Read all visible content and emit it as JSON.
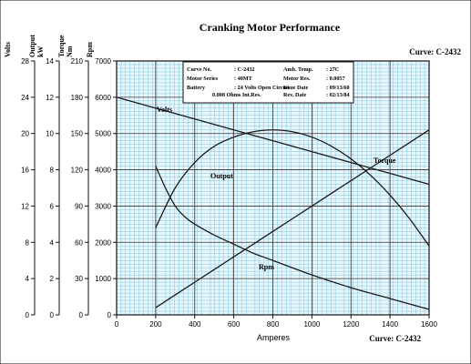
{
  "chart_data": {
    "type": "line",
    "title": "Cranking Motor Performance",
    "curve_label": "Curve: C-2432",
    "xlabel": "Amperes",
    "x_ticks": [
      0,
      200,
      400,
      600,
      800,
      1000,
      1200,
      1400,
      1600
    ],
    "xlim": [
      0,
      1600
    ],
    "grid": true,
    "axes": [
      {
        "key": "volts",
        "label": "Volts",
        "unit": "",
        "ticks": [
          0,
          4,
          8,
          12,
          16,
          20,
          24,
          28
        ],
        "range": [
          0,
          28
        ]
      },
      {
        "key": "output",
        "label": "Output",
        "unit": "kW",
        "ticks": [
          0,
          2,
          4,
          6,
          8,
          10,
          12,
          14
        ],
        "range": [
          0,
          14
        ]
      },
      {
        "key": "torque",
        "label": "Torque",
        "unit": "Nm",
        "ticks": [
          0,
          30,
          60,
          90,
          120,
          150,
          180,
          210
        ],
        "range": [
          0,
          210
        ]
      },
      {
        "key": "rpm",
        "label": "Rpm",
        "unit": "",
        "ticks": [
          0,
          1000,
          2000,
          3000,
          4000,
          5000,
          6000,
          7000
        ],
        "range": [
          0,
          7000
        ]
      }
    ],
    "series": [
      {
        "name": "Volts",
        "axis": "volts",
        "x": [
          0,
          200,
          400,
          600,
          800,
          1000,
          1200,
          1400,
          1600
        ],
        "y": [
          24,
          22.8,
          21.6,
          20.4,
          19.2,
          18.0,
          16.8,
          15.6,
          14.4
        ]
      },
      {
        "name": "Output",
        "axis": "output",
        "x": [
          200,
          300,
          400,
          500,
          600,
          700,
          800,
          900,
          1000,
          1100,
          1200,
          1300,
          1400,
          1500,
          1600
        ],
        "y": [
          4.8,
          7.0,
          8.4,
          9.3,
          9.8,
          10.1,
          10.2,
          10.1,
          9.8,
          9.3,
          8.6,
          7.7,
          6.6,
          5.3,
          3.8
        ]
      },
      {
        "name": "Torque",
        "axis": "torque",
        "x": [
          200,
          400,
          600,
          800,
          1000,
          1200,
          1400,
          1600
        ],
        "y": [
          6,
          27,
          48,
          69,
          90,
          111,
          132,
          153
        ]
      },
      {
        "name": "Rpm",
        "axis": "rpm",
        "x": [
          200,
          250,
          300,
          350,
          400,
          500,
          600,
          700,
          800,
          1000,
          1200,
          1400,
          1600
        ],
        "y": [
          4100,
          3500,
          3000,
          2700,
          2500,
          2200,
          1950,
          1700,
          1500,
          1100,
          750,
          450,
          150
        ]
      }
    ],
    "info_box": [
      [
        {
          "label": "Curve No.",
          "value": ": C-2432"
        },
        {
          "label": "Amb. Temp.",
          "value": ": 27C"
        }
      ],
      [
        {
          "label": "Motor Series",
          "value": ": 40MT"
        },
        {
          "label": "Motor Res.",
          "value": ": 0.0057"
        }
      ],
      [
        {
          "label": "Battery",
          "value": ": 24 Volts Open Circuit"
        },
        {
          "label": "Issue Date",
          "value": ": 09/13/60"
        }
      ],
      [
        {
          "label": "",
          "value": "0.008 Ohms Int.Res."
        },
        {
          "label": "Rev. Date",
          "value": ": 02/13/84"
        }
      ]
    ]
  }
}
